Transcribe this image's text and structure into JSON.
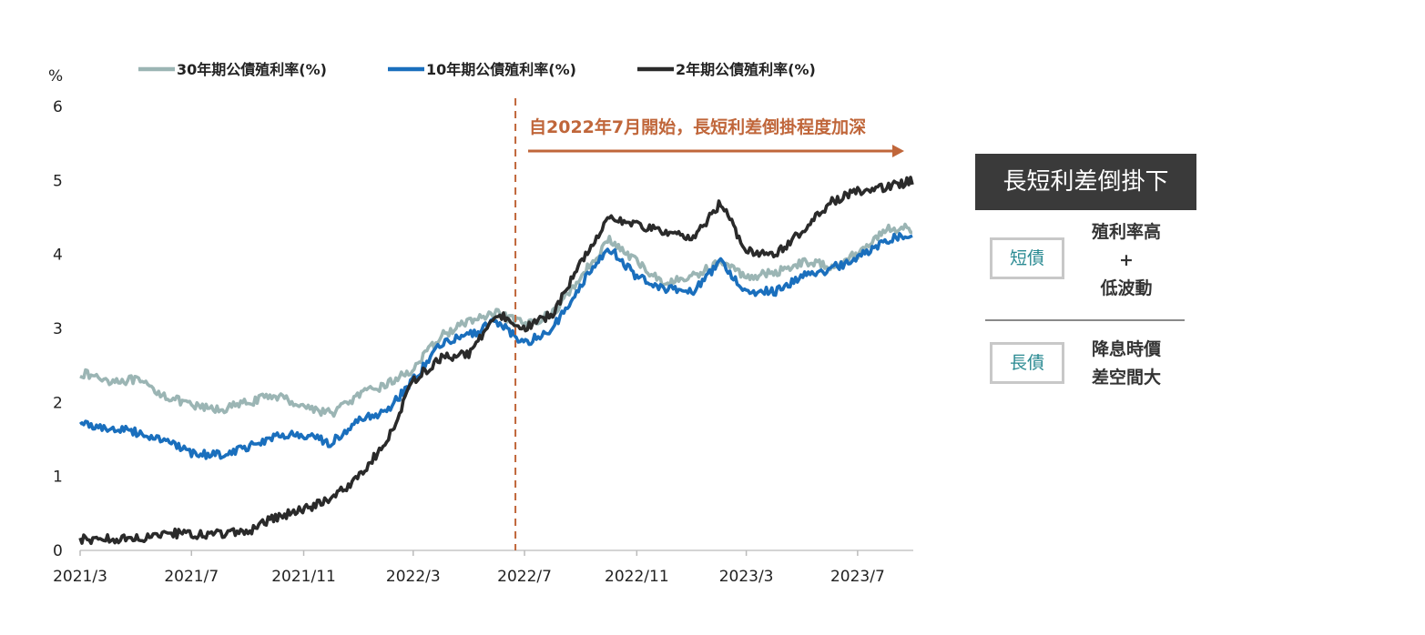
{
  "chart_data": {
    "type": "line",
    "y_unit": "%",
    "ylim": [
      0,
      6
    ],
    "yticks": [
      "0",
      "1",
      "2",
      "3",
      "4",
      "5",
      "6"
    ],
    "xlim": [
      "2021-03-01",
      "2023-08-31"
    ],
    "xticks": [
      "2021/3",
      "2021/7",
      "2021/11",
      "2022/3",
      "2022/7",
      "2022/11",
      "2023/3",
      "2023/7"
    ],
    "grid": false,
    "legend_position": "top",
    "series": [
      {
        "name": "30年期公債殖利率(%)",
        "color": "#9bb5b4",
        "points": [
          [
            "2021-03-01",
            2.4
          ],
          [
            "2021-04-01",
            2.3
          ],
          [
            "2021-05-01",
            2.3
          ],
          [
            "2021-06-01",
            2.1
          ],
          [
            "2021-07-01",
            1.95
          ],
          [
            "2021-08-01",
            1.9
          ],
          [
            "2021-09-01",
            2.0
          ],
          [
            "2021-10-01",
            2.1
          ],
          [
            "2021-11-01",
            1.95
          ],
          [
            "2021-12-01",
            1.85
          ],
          [
            "2022-01-01",
            2.1
          ],
          [
            "2022-02-01",
            2.25
          ],
          [
            "2022-03-01",
            2.45
          ],
          [
            "2022-04-01",
            2.9
          ],
          [
            "2022-05-01",
            3.1
          ],
          [
            "2022-06-01",
            3.2
          ],
          [
            "2022-07-01",
            3.05
          ],
          [
            "2022-08-01",
            3.2
          ],
          [
            "2022-09-01",
            3.7
          ],
          [
            "2022-10-01",
            4.2
          ],
          [
            "2022-11-01",
            3.9
          ],
          [
            "2022-12-01",
            3.6
          ],
          [
            "2023-01-01",
            3.7
          ],
          [
            "2023-02-01",
            3.9
          ],
          [
            "2023-03-01",
            3.7
          ],
          [
            "2023-04-01",
            3.75
          ],
          [
            "2023-05-01",
            3.9
          ],
          [
            "2023-06-01",
            3.85
          ],
          [
            "2023-07-01",
            4.0
          ],
          [
            "2023-08-01",
            4.35
          ],
          [
            "2023-08-31",
            4.35
          ]
        ]
      },
      {
        "name": "10年期公債殖利率(%)",
        "color": "#1a6fbd",
        "points": [
          [
            "2021-03-01",
            1.72
          ],
          [
            "2021-04-01",
            1.65
          ],
          [
            "2021-05-01",
            1.6
          ],
          [
            "2021-06-01",
            1.5
          ],
          [
            "2021-07-01",
            1.3
          ],
          [
            "2021-08-01",
            1.3
          ],
          [
            "2021-09-01",
            1.4
          ],
          [
            "2021-10-01",
            1.55
          ],
          [
            "2021-11-01",
            1.55
          ],
          [
            "2021-12-01",
            1.45
          ],
          [
            "2022-01-01",
            1.75
          ],
          [
            "2022-02-01",
            1.9
          ],
          [
            "2022-03-01",
            2.3
          ],
          [
            "2022-04-01",
            2.8
          ],
          [
            "2022-05-01",
            2.9
          ],
          [
            "2022-06-01",
            3.1
          ],
          [
            "2022-07-01",
            2.8
          ],
          [
            "2022-08-01",
            3.0
          ],
          [
            "2022-09-01",
            3.6
          ],
          [
            "2022-10-01",
            4.1
          ],
          [
            "2022-11-01",
            3.7
          ],
          [
            "2022-12-01",
            3.55
          ],
          [
            "2023-01-01",
            3.5
          ],
          [
            "2023-02-01",
            3.9
          ],
          [
            "2023-03-01",
            3.5
          ],
          [
            "2023-04-01",
            3.5
          ],
          [
            "2023-05-01",
            3.7
          ],
          [
            "2023-06-01",
            3.8
          ],
          [
            "2023-07-01",
            3.95
          ],
          [
            "2023-08-01",
            4.2
          ],
          [
            "2023-08-31",
            4.3
          ]
        ]
      },
      {
        "name": "2年期公債殖利率(%)",
        "color": "#2a2a2a",
        "points": [
          [
            "2021-03-01",
            0.15
          ],
          [
            "2021-04-01",
            0.16
          ],
          [
            "2021-05-01",
            0.15
          ],
          [
            "2021-06-01",
            0.25
          ],
          [
            "2021-07-01",
            0.2
          ],
          [
            "2021-08-01",
            0.22
          ],
          [
            "2021-09-01",
            0.25
          ],
          [
            "2021-10-01",
            0.45
          ],
          [
            "2021-11-01",
            0.55
          ],
          [
            "2021-12-01",
            0.7
          ],
          [
            "2022-01-01",
            1.0
          ],
          [
            "2022-02-01",
            1.5
          ],
          [
            "2022-03-01",
            2.3
          ],
          [
            "2022-04-01",
            2.6
          ],
          [
            "2022-05-01",
            2.65
          ],
          [
            "2022-06-01",
            3.2
          ],
          [
            "2022-07-01",
            3.0
          ],
          [
            "2022-08-01",
            3.2
          ],
          [
            "2022-09-01",
            3.9
          ],
          [
            "2022-10-01",
            4.5
          ],
          [
            "2022-11-01",
            4.4
          ],
          [
            "2022-12-01",
            4.3
          ],
          [
            "2023-01-01",
            4.2
          ],
          [
            "2023-02-01",
            4.7
          ],
          [
            "2023-03-01",
            4.05
          ],
          [
            "2023-04-01",
            4.0
          ],
          [
            "2023-05-01",
            4.3
          ],
          [
            "2023-06-01",
            4.7
          ],
          [
            "2023-07-01",
            4.85
          ],
          [
            "2023-08-01",
            4.9
          ],
          [
            "2023-08-31",
            5.0
          ]
        ]
      }
    ],
    "annotation": {
      "text": "自2022年7月開始，長短利差倒掛程度加深",
      "start_date": "2022-07-01",
      "color": "#c0663a"
    }
  },
  "side_panel": {
    "title": "長短利差倒掛下",
    "items": [
      {
        "box_label": "短債",
        "description_lines": [
          "殖利率高",
          "+",
          "低波動"
        ]
      },
      {
        "box_label": "長債",
        "description_lines": [
          "降息時價",
          "差空間大"
        ]
      }
    ]
  }
}
